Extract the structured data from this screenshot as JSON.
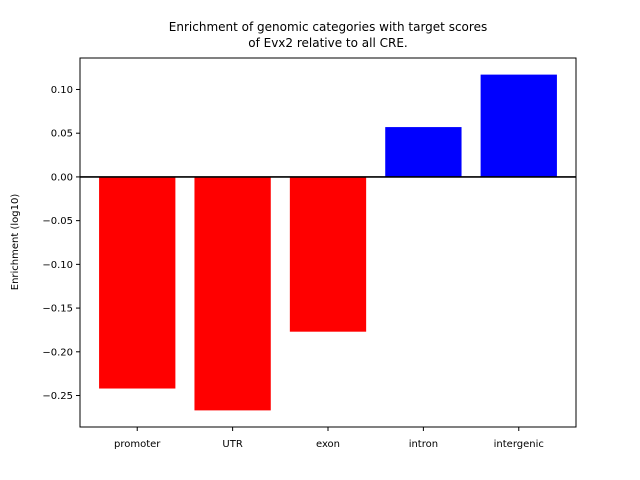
{
  "chart_data": {
    "type": "bar",
    "title_lines": [
      "Enrichment of genomic categories with target scores",
      "of Evx2 relative to all CRE."
    ],
    "xlabel": "",
    "ylabel": "Enrichment (log10)",
    "categories": [
      "promoter",
      "UTR",
      "exon",
      "intron",
      "intergenic"
    ],
    "values": [
      -0.242,
      -0.267,
      -0.177,
      0.057,
      0.117
    ],
    "colors": [
      "#ff0000",
      "#ff0000",
      "#ff0000",
      "#0000ff",
      "#0000ff"
    ],
    "ylim": [
      -0.286,
      0.136
    ],
    "yticks": [
      0.1,
      0.05,
      0.0,
      -0.05,
      -0.1,
      -0.15,
      -0.2,
      -0.25
    ],
    "ytick_labels": [
      "0.10",
      "0.05",
      "0.00",
      "−0.05",
      "−0.10",
      "−0.15",
      "−0.20",
      "−0.25"
    ],
    "zero_line": true,
    "grid": false
  }
}
